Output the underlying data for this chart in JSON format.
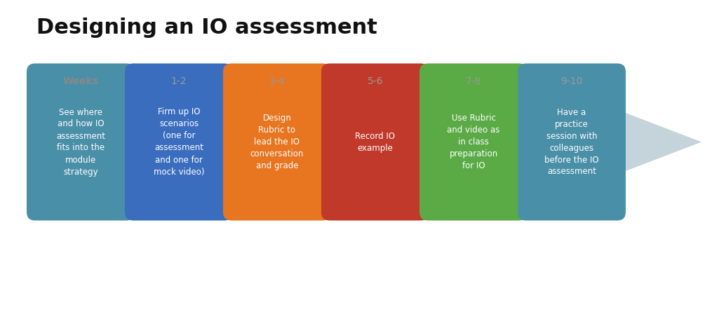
{
  "title": "Designing an IO assessment",
  "title_fontsize": 22,
  "title_fontweight": "bold",
  "background_color": "#ffffff",
  "arrow_color": "#c5d3db",
  "weeks_label": "Weeks",
  "weeks_label_color": "#888888",
  "weeks_label_bold": true,
  "week_label_color": "#999999",
  "steps": [
    {
      "week_label": "",
      "box_color": "#4a8fa8",
      "text": "See where\nand how IO\nassessment\nfits into the\nmodule\nstrategy",
      "text_color": "#ffffff",
      "inside_arrow": true
    },
    {
      "week_label": "1-2",
      "box_color": "#3b6dbf",
      "text": "Firm up IO\nscenarios\n(one for\nassessment\nand one for\nmock video)",
      "text_color": "#ffffff",
      "inside_arrow": true
    },
    {
      "week_label": "3-4",
      "box_color": "#e87520",
      "text": "Design\nRubric to\nlead the IO\nconversation\nand grade",
      "text_color": "#ffffff",
      "inside_arrow": true
    },
    {
      "week_label": "5-6",
      "box_color": "#c0392b",
      "text": "Record IO\nexample",
      "text_color": "#ffffff",
      "inside_arrow": true
    },
    {
      "week_label": "7-8",
      "box_color": "#5aaa46",
      "text": "Use Rubric\nand video as\nin class\npreparation\nfor IO",
      "text_color": "#ffffff",
      "inside_arrow": true
    },
    {
      "week_label": "9-10",
      "box_color": "#4a8fa8",
      "text": "Have a\npractice\nsession with\ncolleagues\nbefore the IO\nassessment",
      "text_color": "#ffffff",
      "inside_arrow": false
    }
  ]
}
